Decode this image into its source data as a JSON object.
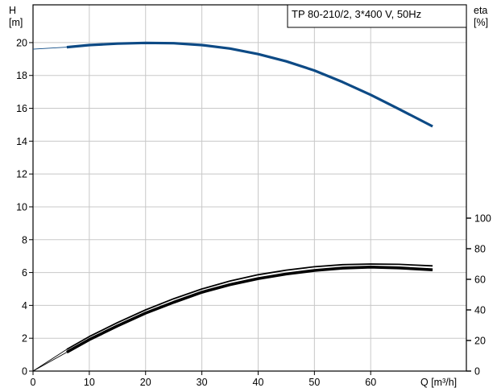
{
  "chart_data": {
    "type": "line",
    "title": "TP 80-210/2, 3*400 V, 50Hz",
    "xlabel": "Q [m³/h]",
    "ylabel_left_1": "H",
    "ylabel_left_2": "[m]",
    "ylabel_right_1": "eta",
    "ylabel_right_2": "[%]",
    "xlim": [
      0,
      77
    ],
    "ylim_left": [
      0,
      22.3
    ],
    "ylim_right": [
      0,
      100
    ],
    "x_ticks": [
      0,
      10,
      20,
      30,
      40,
      50,
      60
    ],
    "x_tick_labels": [
      "0",
      "10",
      "20",
      "30",
      "40",
      "50",
      "60"
    ],
    "y_left_ticks": [
      0,
      2,
      4,
      6,
      8,
      10,
      12,
      14,
      16,
      18,
      20
    ],
    "y_left_tick_labels": [
      "0",
      "2",
      "4",
      "6",
      "8",
      "10",
      "12",
      "14",
      "16",
      "18",
      "20"
    ],
    "y_right_ticks": [
      0,
      20,
      40,
      60,
      80,
      100
    ],
    "y_right_tick_labels": [
      "0",
      "20",
      "40",
      "60",
      "80",
      "100"
    ],
    "grid": true,
    "series": [
      {
        "axis": "left",
        "color": "#0d4a85",
        "x": [
          0,
          6,
          10,
          15,
          20,
          25,
          30,
          35,
          40,
          45,
          50,
          55,
          60,
          65,
          71
        ],
        "y": [
          19.6,
          19.72,
          19.85,
          19.94,
          19.98,
          19.96,
          19.85,
          19.64,
          19.3,
          18.86,
          18.3,
          17.6,
          16.82,
          15.96,
          14.9
        ]
      },
      {
        "axis": "right",
        "color": "#000000",
        "x": [
          0,
          6,
          10,
          15,
          20,
          25,
          30,
          35,
          40,
          45,
          50,
          55,
          60,
          65,
          71
        ],
        "y": [
          0,
          12.3,
          20.6,
          29.5,
          37.9,
          45,
          51.5,
          56.5,
          60.5,
          63.5,
          65.8,
          67.3,
          68,
          67.5,
          66.2
        ]
      },
      {
        "axis": "right",
        "color": "#000000",
        "x": [
          0,
          6,
          10,
          15,
          20,
          25,
          30,
          35,
          40,
          45,
          50,
          55,
          60,
          65,
          71
        ],
        "y": [
          0,
          14.2,
          22.6,
          31.7,
          40,
          47.3,
          53.7,
          58.9,
          63,
          66,
          68.2,
          69.6,
          70,
          69.8,
          68.8
        ]
      }
    ]
  }
}
